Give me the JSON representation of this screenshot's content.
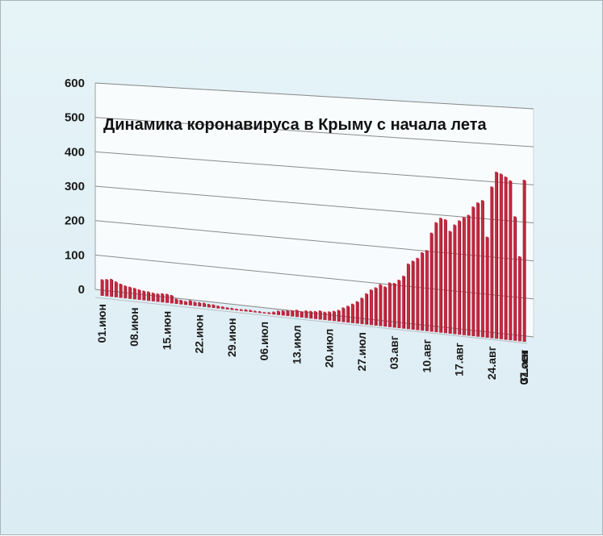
{
  "chart_data": {
    "type": "bar",
    "title": "Динамика  коронавируса в Крыму с начала лета",
    "xlabel": "",
    "ylabel": "",
    "ylim": [
      0,
      600
    ],
    "yticks": [
      0,
      100,
      200,
      300,
      400,
      500,
      600
    ],
    "grid": true,
    "legend": "none",
    "bar_color": "#c8243c",
    "x_tick_labels": [
      "01.июн",
      "08.июн",
      "15.июн",
      "22.июн",
      "29.июн",
      "06.июл",
      "13.июл",
      "20.июл",
      "27.июл",
      "03.авг",
      "10.авг",
      "17.авг",
      "24.авг",
      "31.авг",
      "07.сен"
    ],
    "values": [
      48,
      50,
      52,
      46,
      41,
      37,
      35,
      33,
      30,
      28,
      27,
      25,
      24,
      26,
      26,
      24,
      15,
      13,
      11,
      15,
      12,
      12,
      12,
      10,
      10,
      8,
      7,
      6,
      6,
      5,
      5,
      6,
      6,
      5,
      5,
      4,
      5,
      8,
      12,
      14,
      16,
      17,
      20,
      17,
      21,
      21,
      22,
      25,
      23,
      25,
      28,
      32,
      40,
      46,
      53,
      61,
      72,
      85,
      97,
      104,
      114,
      109,
      121,
      121,
      131,
      143,
      177,
      186,
      195,
      211,
      218,
      266,
      295,
      308,
      305,
      275,
      293,
      305,
      315,
      322,
      345,
      357,
      364,
      268,
      402,
      442,
      438,
      431,
      422,
      328,
      224,
      426
    ]
  }
}
